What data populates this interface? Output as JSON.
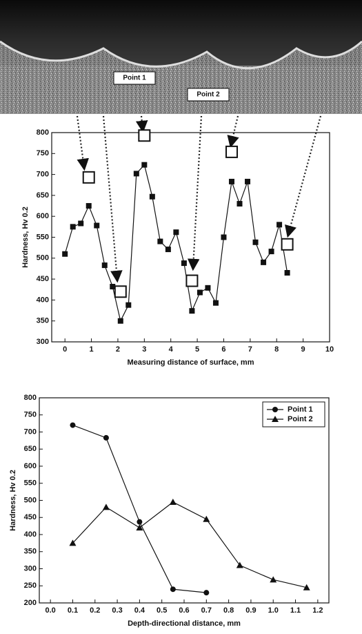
{
  "image": {
    "labels": [
      "Point 1",
      "Point 2"
    ]
  },
  "chart_data": [
    {
      "type": "line",
      "x_label": "Measuring distance of surface, mm",
      "y_label": "Hardness, Hv 0.2",
      "xlim": [
        -0.5,
        10
      ],
      "ylim": [
        300,
        800
      ],
      "xticks": [
        0,
        1,
        2,
        3,
        4,
        5,
        6,
        7,
        8,
        9,
        10
      ],
      "yticks": [
        300,
        350,
        400,
        450,
        500,
        550,
        600,
        650,
        700,
        750,
        800
      ],
      "series": [
        {
          "color": "#111111",
          "marker": "square",
          "line": true,
          "x": [
            0,
            0.3,
            0.6,
            0.9,
            1.2,
            1.5,
            1.8,
            2.1,
            2.4,
            2.7,
            3.0,
            3.3,
            3.6,
            3.9,
            4.2,
            4.5,
            4.8,
            5.1,
            5.4,
            5.7,
            6.0,
            6.3,
            6.6,
            6.9,
            7.2,
            7.5,
            7.8,
            8.1,
            8.4
          ],
          "values": [
            510,
            575,
            583,
            625,
            578,
            483,
            432,
            350,
            388,
            702,
            723,
            647,
            540,
            521,
            562,
            488,
            374,
            418,
            429,
            393,
            550,
            683,
            630,
            683,
            538,
            490,
            516,
            580,
            465
          ]
        },
        {
          "color": "#111111",
          "marker": "open-square",
          "line": false,
          "x": [
            0.9,
            2.1,
            3.0,
            4.8,
            6.3,
            8.4
          ],
          "values": [
            693,
            420,
            793,
            446,
            754,
            533
          ]
        }
      ]
    },
    {
      "type": "line",
      "x_label": "Depth-directional distance, mm",
      "y_label": "Hardness, Hv 0.2",
      "xlim": [
        -0.05,
        1.25
      ],
      "ylim": [
        200,
        800
      ],
      "xticks": [
        {
          "value": 0,
          "label": "0.0"
        },
        0.1,
        0.2,
        0.3,
        0.4,
        0.5,
        0.6,
        0.7,
        0.8,
        0.9,
        {
          "value": 1,
          "label": "1.0"
        },
        1.1,
        1.2
      ],
      "yticks": [
        200,
        250,
        300,
        350,
        400,
        450,
        500,
        550,
        600,
        650,
        700,
        750,
        800
      ],
      "legend": "upper right",
      "series": [
        {
          "name": "Point 1",
          "color": "#111111",
          "marker": "circle",
          "line": true,
          "x": [
            0.1,
            0.25,
            0.4,
            0.55,
            0.7
          ],
          "values": [
            720,
            683,
            437,
            240,
            230
          ]
        },
        {
          "name": "Point 2",
          "color": "#111111",
          "marker": "triangle",
          "line": true,
          "x": [
            0.1,
            0.25,
            0.4,
            0.55,
            0.7,
            0.85,
            1.0,
            1.15
          ],
          "values": [
            375,
            480,
            420,
            495,
            445,
            310,
            268,
            245
          ]
        }
      ]
    }
  ]
}
